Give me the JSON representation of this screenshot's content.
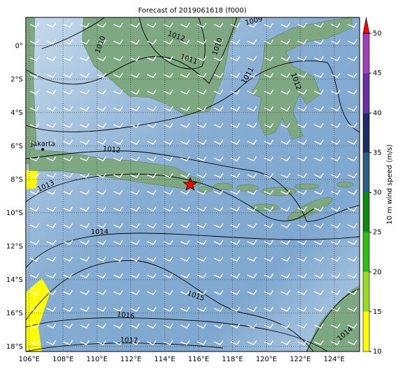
{
  "map": {
    "title": "Forecast of 2019061618 (f000)",
    "xlim": [
      105.8,
      125.5
    ],
    "ylim": [
      -18.3,
      1.7
    ],
    "xticks": [
      {
        "value": 106,
        "label": "106°E"
      },
      {
        "value": 108,
        "label": "108°E"
      },
      {
        "value": 110,
        "label": "110°E"
      },
      {
        "value": 112,
        "label": "112°E"
      },
      {
        "value": 114,
        "label": "114°E"
      },
      {
        "value": 116,
        "label": "116°E"
      },
      {
        "value": 118,
        "label": "118°E"
      },
      {
        "value": 120,
        "label": "120°E"
      },
      {
        "value": 122,
        "label": "122°E"
      },
      {
        "value": 124,
        "label": "124°E"
      }
    ],
    "yticks": [
      {
        "value": 0,
        "label": "0°"
      },
      {
        "value": -2,
        "label": "2°S"
      },
      {
        "value": -4,
        "label": "4°S"
      },
      {
        "value": -6,
        "label": "6°S"
      },
      {
        "value": -8,
        "label": "8°S"
      },
      {
        "value": -10,
        "label": "10°S"
      },
      {
        "value": -12,
        "label": "12°S"
      },
      {
        "value": -14,
        "label": "14°S"
      },
      {
        "value": -16,
        "label": "16°S"
      },
      {
        "value": -18,
        "label": "18°S"
      }
    ],
    "grid": true,
    "contour_labels": [
      "1012",
      "1010",
      "1011",
      "1010",
      "1009",
      "1011",
      "1012",
      "1012",
      "1013",
      "1014",
      "1015",
      "1016",
      "1017",
      "1014"
    ],
    "places": [
      {
        "name": "Jakarta",
        "lon": 106.8,
        "lat": -6.2
      }
    ],
    "marker": {
      "lon": 115.5,
      "lat": -8.3,
      "color": "#ff0000"
    },
    "colorbar": {
      "label": "10 m wind speed (m/s)",
      "lim": [
        10,
        50
      ],
      "ticks": [
        10,
        15,
        20,
        25,
        30,
        35,
        40,
        45,
        50
      ],
      "colors": [
        "#ffff00",
        "#99dd22",
        "#33bb11",
        "#118811",
        "#2a5c88",
        "#1c2c66",
        "#6a2ca0",
        "#a040b8"
      ],
      "extend_color": "#ff0000"
    }
  }
}
